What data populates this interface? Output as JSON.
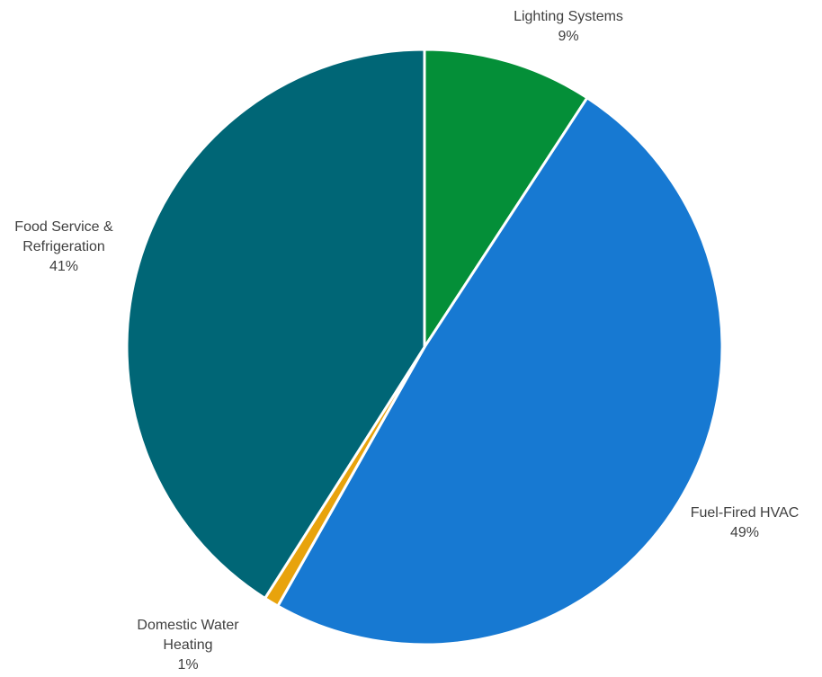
{
  "chart_data": {
    "type": "pie",
    "start_angle_deg": 0,
    "direction": "clockwise",
    "legend": "none",
    "slices": [
      {
        "label_lines": [
          "Lighting Systems"
        ],
        "percent_label": "9%",
        "value": 9.2,
        "color": "#048F38"
      },
      {
        "label_lines": [
          "Fuel-Fired HVAC"
        ],
        "percent_label": "49%",
        "value": 49.0,
        "color": "#1779D2"
      },
      {
        "label_lines": [
          "Domestic Water",
          "Heating"
        ],
        "percent_label": "1%",
        "value": 0.8,
        "color": "#E8A30C"
      },
      {
        "label_lines": [
          "Food Service &",
          "Refrigeration"
        ],
        "percent_label": "41%",
        "value": 41.0,
        "color": "#006676"
      }
    ]
  }
}
